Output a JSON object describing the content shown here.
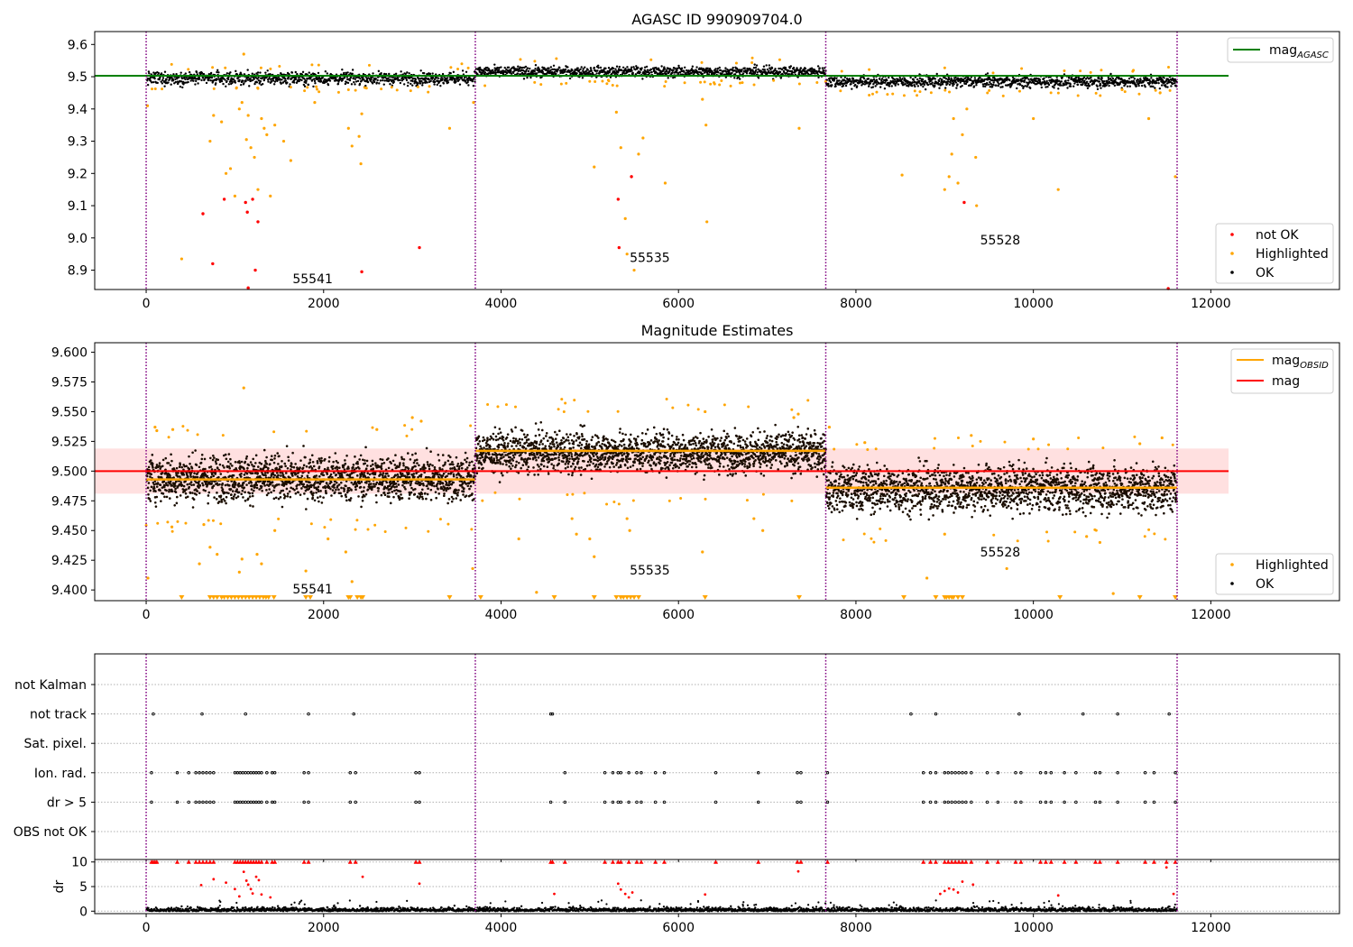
{
  "chart_data": [
    {
      "type": "scatter",
      "title": "AGASC ID 990909704.0",
      "xlim": [
        -580,
        13450
      ],
      "ylim": [
        8.84,
        9.64
      ],
      "xticks": [
        0,
        2000,
        4000,
        6000,
        8000,
        10000,
        12000
      ],
      "yticks": [
        8.9,
        9.0,
        9.1,
        9.2,
        9.3,
        9.4,
        9.5,
        9.6
      ],
      "ytick_decimals": 1,
      "obs_boundaries": [
        0,
        3710,
        7660,
        11620
      ],
      "observations": [
        {
          "obsid": "55541",
          "x_range": [
            0,
            3710
          ],
          "text_x": 1650,
          "text_y": 8.86,
          "ok_center": 9.495,
          "ok_spread": 0.018
        },
        {
          "obsid": "55535",
          "x_range": [
            3710,
            7660
          ],
          "text_x": 5450,
          "text_y": 8.925,
          "ok_center": 9.515,
          "ok_spread": 0.015
        },
        {
          "obsid": "55528",
          "x_range": [
            7660,
            11620
          ],
          "text_x": 9400,
          "text_y": 8.98,
          "ok_center": 9.485,
          "ok_spread": 0.017
        }
      ],
      "mag_agasc": 9.503,
      "mag_agasc_x_range": [
        -580,
        12200
      ],
      "series": [
        {
          "name": "not OK",
          "color": "#ff0000"
        },
        {
          "name": "Highlighted",
          "color": "#ffa500"
        },
        {
          "name": "OK",
          "color": "#000000"
        }
      ],
      "highlighted_points": [
        [
          15,
          9.41
        ],
        [
          400,
          8.935
        ],
        [
          720,
          9.3
        ],
        [
          760,
          9.38
        ],
        [
          850,
          9.36
        ],
        [
          900,
          9.2
        ],
        [
          950,
          9.215
        ],
        [
          1000,
          9.13
        ],
        [
          1050,
          9.4
        ],
        [
          1080,
          9.42
        ],
        [
          1100,
          9.57
        ],
        [
          1130,
          9.305
        ],
        [
          1150,
          9.38
        ],
        [
          1180,
          9.28
        ],
        [
          1220,
          9.25
        ],
        [
          1260,
          9.15
        ],
        [
          1300,
          9.37
        ],
        [
          1330,
          9.34
        ],
        [
          1360,
          9.32
        ],
        [
          1400,
          9.13
        ],
        [
          1450,
          9.35
        ],
        [
          1550,
          9.3
        ],
        [
          1630,
          9.24
        ],
        [
          1900,
          9.42
        ],
        [
          2280,
          9.34
        ],
        [
          2320,
          9.285
        ],
        [
          2400,
          9.315
        ],
        [
          2430,
          9.385
        ],
        [
          2420,
          9.23
        ],
        [
          3420,
          9.34
        ],
        [
          3690,
          9.42
        ],
        [
          5050,
          9.22
        ],
        [
          5300,
          9.39
        ],
        [
          5350,
          9.28
        ],
        [
          5400,
          9.06
        ],
        [
          5420,
          8.95
        ],
        [
          5500,
          8.9
        ],
        [
          5550,
          9.26
        ],
        [
          5600,
          9.31
        ],
        [
          5850,
          9.17
        ],
        [
          6270,
          9.43
        ],
        [
          6310,
          9.35
        ],
        [
          6320,
          9.05
        ],
        [
          7360,
          9.34
        ],
        [
          8520,
          9.195
        ],
        [
          9000,
          9.15
        ],
        [
          9050,
          9.19
        ],
        [
          9080,
          9.26
        ],
        [
          9100,
          9.37
        ],
        [
          9150,
          9.17
        ],
        [
          9200,
          9.32
        ],
        [
          9250,
          9.4
        ],
        [
          9350,
          9.25
        ],
        [
          9360,
          9.1
        ],
        [
          10000,
          9.37
        ],
        [
          10280,
          9.15
        ],
        [
          11000,
          9.46
        ],
        [
          11300,
          9.37
        ],
        [
          11600,
          9.19
        ]
      ],
      "notok_points": [
        [
          640,
          9.075
        ],
        [
          750,
          8.92
        ],
        [
          880,
          9.12
        ],
        [
          1120,
          9.11
        ],
        [
          1140,
          9.08
        ],
        [
          1150,
          8.845
        ],
        [
          1200,
          9.12
        ],
        [
          1230,
          8.9
        ],
        [
          1260,
          9.05
        ],
        [
          2430,
          8.895
        ],
        [
          3080,
          8.97
        ],
        [
          5320,
          9.12
        ],
        [
          5330,
          8.97
        ],
        [
          5470,
          9.19
        ],
        [
          9220,
          9.11
        ],
        [
          11520,
          8.84
        ]
      ]
    },
    {
      "type": "scatter",
      "title": "Magnitude Estimates",
      "xlim": [
        -580,
        13450
      ],
      "ylim": [
        9.391,
        9.608
      ],
      "xticks": [
        0,
        2000,
        4000,
        6000,
        8000,
        10000,
        12000
      ],
      "yticks": [
        9.4,
        9.425,
        9.45,
        9.475,
        9.5,
        9.525,
        9.55,
        9.575,
        9.6
      ],
      "ytick_decimals": 3,
      "obs_boundaries": [
        0,
        3710,
        7660,
        11620
      ],
      "observations": [
        {
          "obsid": "55541",
          "x_range": [
            0,
            3710
          ],
          "text_x": 1650,
          "text_y": 9.397,
          "mag_obsid": 9.493,
          "ok_center": 9.494,
          "ok_spread": 0.016
        },
        {
          "obsid": "55535",
          "x_range": [
            3710,
            7660
          ],
          "text_x": 5450,
          "text_y": 9.413,
          "mag_obsid": 9.517,
          "ok_center": 9.516,
          "ok_spread": 0.014
        },
        {
          "obsid": "55528",
          "x_range": [
            7660,
            11620
          ],
          "text_x": 9400,
          "text_y": 9.428,
          "mag_obsid": 9.486,
          "ok_center": 9.485,
          "ok_spread": 0.016
        }
      ],
      "mag": 9.5,
      "mag_band": [
        9.481,
        9.519
      ],
      "mag_x_range": [
        -580,
        12200
      ],
      "series": [
        {
          "name": "mag_OBSID",
          "color": "#ffa500"
        },
        {
          "name": "mag",
          "color": "#ff0000"
        },
        {
          "name": "Highlighted",
          "color": "#ffa500"
        },
        {
          "name": "OK",
          "color": "#000000"
        }
      ],
      "highlighted_points": [
        [
          20,
          9.41
        ],
        [
          100,
          9.537
        ],
        [
          120,
          9.534
        ],
        [
          290,
          9.453
        ],
        [
          300,
          9.535
        ],
        [
          600,
          9.422
        ],
        [
          650,
          9.455
        ],
        [
          720,
          9.436
        ],
        [
          800,
          9.43
        ],
        [
          1050,
          9.415
        ],
        [
          1080,
          9.426
        ],
        [
          1100,
          9.57
        ],
        [
          1250,
          9.43
        ],
        [
          1300,
          9.422
        ],
        [
          1450,
          9.45
        ],
        [
          1800,
          9.416
        ],
        [
          2050,
          9.443
        ],
        [
          2250,
          9.432
        ],
        [
          2320,
          9.407
        ],
        [
          2600,
          9.535
        ],
        [
          3000,
          9.545
        ],
        [
          3100,
          9.542
        ],
        [
          3680,
          9.418
        ],
        [
          4200,
          9.443
        ],
        [
          4400,
          9.398
        ],
        [
          4800,
          9.46
        ],
        [
          4850,
          9.447
        ],
        [
          5000,
          9.443
        ],
        [
          5050,
          9.428
        ],
        [
          5420,
          9.46
        ],
        [
          5450,
          9.45
        ],
        [
          6270,
          9.432
        ],
        [
          6300,
          9.55
        ],
        [
          6850,
          9.46
        ],
        [
          6950,
          9.45
        ],
        [
          7300,
          9.545
        ],
        [
          7350,
          9.548
        ],
        [
          7700,
          9.537
        ],
        [
          8100,
          9.524
        ],
        [
          8800,
          9.41
        ],
        [
          9000,
          9.447
        ],
        [
          9300,
          9.53
        ],
        [
          9700,
          9.418
        ],
        [
          10000,
          9.527
        ],
        [
          10600,
          9.445
        ],
        [
          10750,
          9.44
        ],
        [
          10900,
          9.397
        ],
        [
          11200,
          9.523
        ],
        [
          11450,
          9.528
        ]
      ],
      "clipped_points_x": [
        400,
        720,
        760,
        800,
        850,
        880,
        920,
        960,
        1000,
        1040,
        1080,
        1120,
        1160,
        1200,
        1240,
        1280,
        1320,
        1350,
        1380,
        1440,
        1800,
        1850,
        2280,
        2300,
        2380,
        2420,
        2440,
        3420,
        3770,
        4600,
        5050,
        5300,
        5350,
        5380,
        5420,
        5460,
        5500,
        5550,
        6300,
        7360,
        8540,
        8900,
        9000,
        9020,
        9050,
        9080,
        9100,
        9150,
        9200,
        10300,
        11200,
        11600
      ]
    },
    {
      "type": "scatter",
      "title": "",
      "xlim": [
        -580,
        13450
      ],
      "obs_boundaries": [
        0,
        3710,
        7660,
        11620
      ],
      "flag_labels": [
        "not Kalman",
        "not track",
        "Sat. pixel.",
        "Ion. rad.",
        "dr > 5",
        "OBS not OK"
      ],
      "flag_points": {
        "not track": [
          80,
          630,
          1120,
          1830,
          2340,
          4560,
          4580,
          8620,
          8900,
          9840,
          10560,
          10950,
          11530
        ],
        "Ion. rad.": [
          60,
          350,
          480,
          560,
          600,
          640,
          680,
          720,
          760,
          1000,
          1030,
          1060,
          1090,
          1120,
          1150,
          1180,
          1210,
          1240,
          1270,
          1300,
          1360,
          1420,
          1450,
          1780,
          1830,
          2300,
          2360,
          3040,
          3080,
          4720,
          5170,
          5260,
          5320,
          5350,
          5440,
          5530,
          5580,
          5740,
          5840,
          6420,
          6900,
          7340,
          7380,
          7680,
          8760,
          8840,
          8900,
          9000,
          9040,
          9080,
          9120,
          9160,
          9200,
          9240,
          9300,
          9480,
          9600,
          9800,
          9860,
          10080,
          10140,
          10200,
          10350,
          10480,
          10700,
          10750,
          10950,
          11260,
          11360,
          11600
        ],
        "dr > 5": [
          60,
          350,
          480,
          560,
          600,
          640,
          680,
          720,
          760,
          1000,
          1030,
          1060,
          1090,
          1120,
          1150,
          1180,
          1210,
          1240,
          1270,
          1300,
          1360,
          1420,
          1450,
          1780,
          1830,
          2300,
          2360,
          3040,
          3080,
          4560,
          4720,
          5170,
          5260,
          5320,
          5350,
          5440,
          5530,
          5580,
          5740,
          5840,
          6420,
          6900,
          7340,
          7380,
          7680,
          8760,
          8840,
          8900,
          9000,
          9040,
          9080,
          9120,
          9160,
          9200,
          9240,
          9300,
          9480,
          9600,
          9800,
          9860,
          10080,
          10140,
          10200,
          10350,
          10480,
          10700,
          10750,
          10950,
          11260,
          11360,
          11600
        ]
      }
    },
    {
      "type": "scatter",
      "title": "",
      "ylabel": "dr",
      "xlim": [
        -580,
        13450
      ],
      "ylim": [
        -0.5,
        10.5
      ],
      "xticks": [
        0,
        2000,
        4000,
        6000,
        8000,
        10000,
        12000
      ],
      "yticks": [
        0,
        5,
        10
      ],
      "ytick_decimals": 0,
      "obs_boundaries": [
        0,
        3710,
        7660,
        11620
      ],
      "dr_clipped_x": [
        60,
        80,
        100,
        120,
        350,
        480,
        560,
        600,
        640,
        680,
        720,
        760,
        1000,
        1030,
        1060,
        1090,
        1120,
        1150,
        1180,
        1210,
        1240,
        1270,
        1300,
        1360,
        1420,
        1450,
        1780,
        1830,
        2300,
        2360,
        3040,
        3080,
        4560,
        4580,
        4720,
        5170,
        5260,
        5320,
        5350,
        5440,
        5530,
        5580,
        5740,
        5840,
        6420,
        6900,
        7340,
        7380,
        7680,
        8760,
        8840,
        8900,
        9000,
        9040,
        9080,
        9120,
        9160,
        9200,
        9240,
        9300,
        9480,
        9600,
        9800,
        9860,
        10080,
        10140,
        10200,
        10350,
        10480,
        10700,
        10750,
        10950,
        11260,
        11360,
        11500,
        11600
      ],
      "dr_red_points": [
        [
          620,
          5.3
        ],
        [
          760,
          6.5
        ],
        [
          900,
          5.8
        ],
        [
          1000,
          4.5
        ],
        [
          1050,
          3.0
        ],
        [
          1100,
          8.0
        ],
        [
          1130,
          6.2
        ],
        [
          1150,
          5.4
        ],
        [
          1180,
          4.5
        ],
        [
          1200,
          3.6
        ],
        [
          1240,
          7.0
        ],
        [
          1270,
          6.3
        ],
        [
          1300,
          3.4
        ],
        [
          1400,
          2.8
        ],
        [
          2440,
          7.0
        ],
        [
          3080,
          5.6
        ],
        [
          4600,
          3.5
        ],
        [
          5320,
          5.6
        ],
        [
          5350,
          4.4
        ],
        [
          5400,
          3.5
        ],
        [
          5440,
          2.8
        ],
        [
          5480,
          3.8
        ],
        [
          6300,
          3.4
        ],
        [
          7350,
          8.1
        ],
        [
          8950,
          3.5
        ],
        [
          9000,
          4.1
        ],
        [
          9050,
          4.6
        ],
        [
          9100,
          4.4
        ],
        [
          9150,
          3.8
        ],
        [
          9200,
          6.0
        ],
        [
          9320,
          5.4
        ],
        [
          10280,
          3.2
        ],
        [
          11500,
          8.9
        ],
        [
          11580,
          3.5
        ]
      ]
    }
  ]
}
